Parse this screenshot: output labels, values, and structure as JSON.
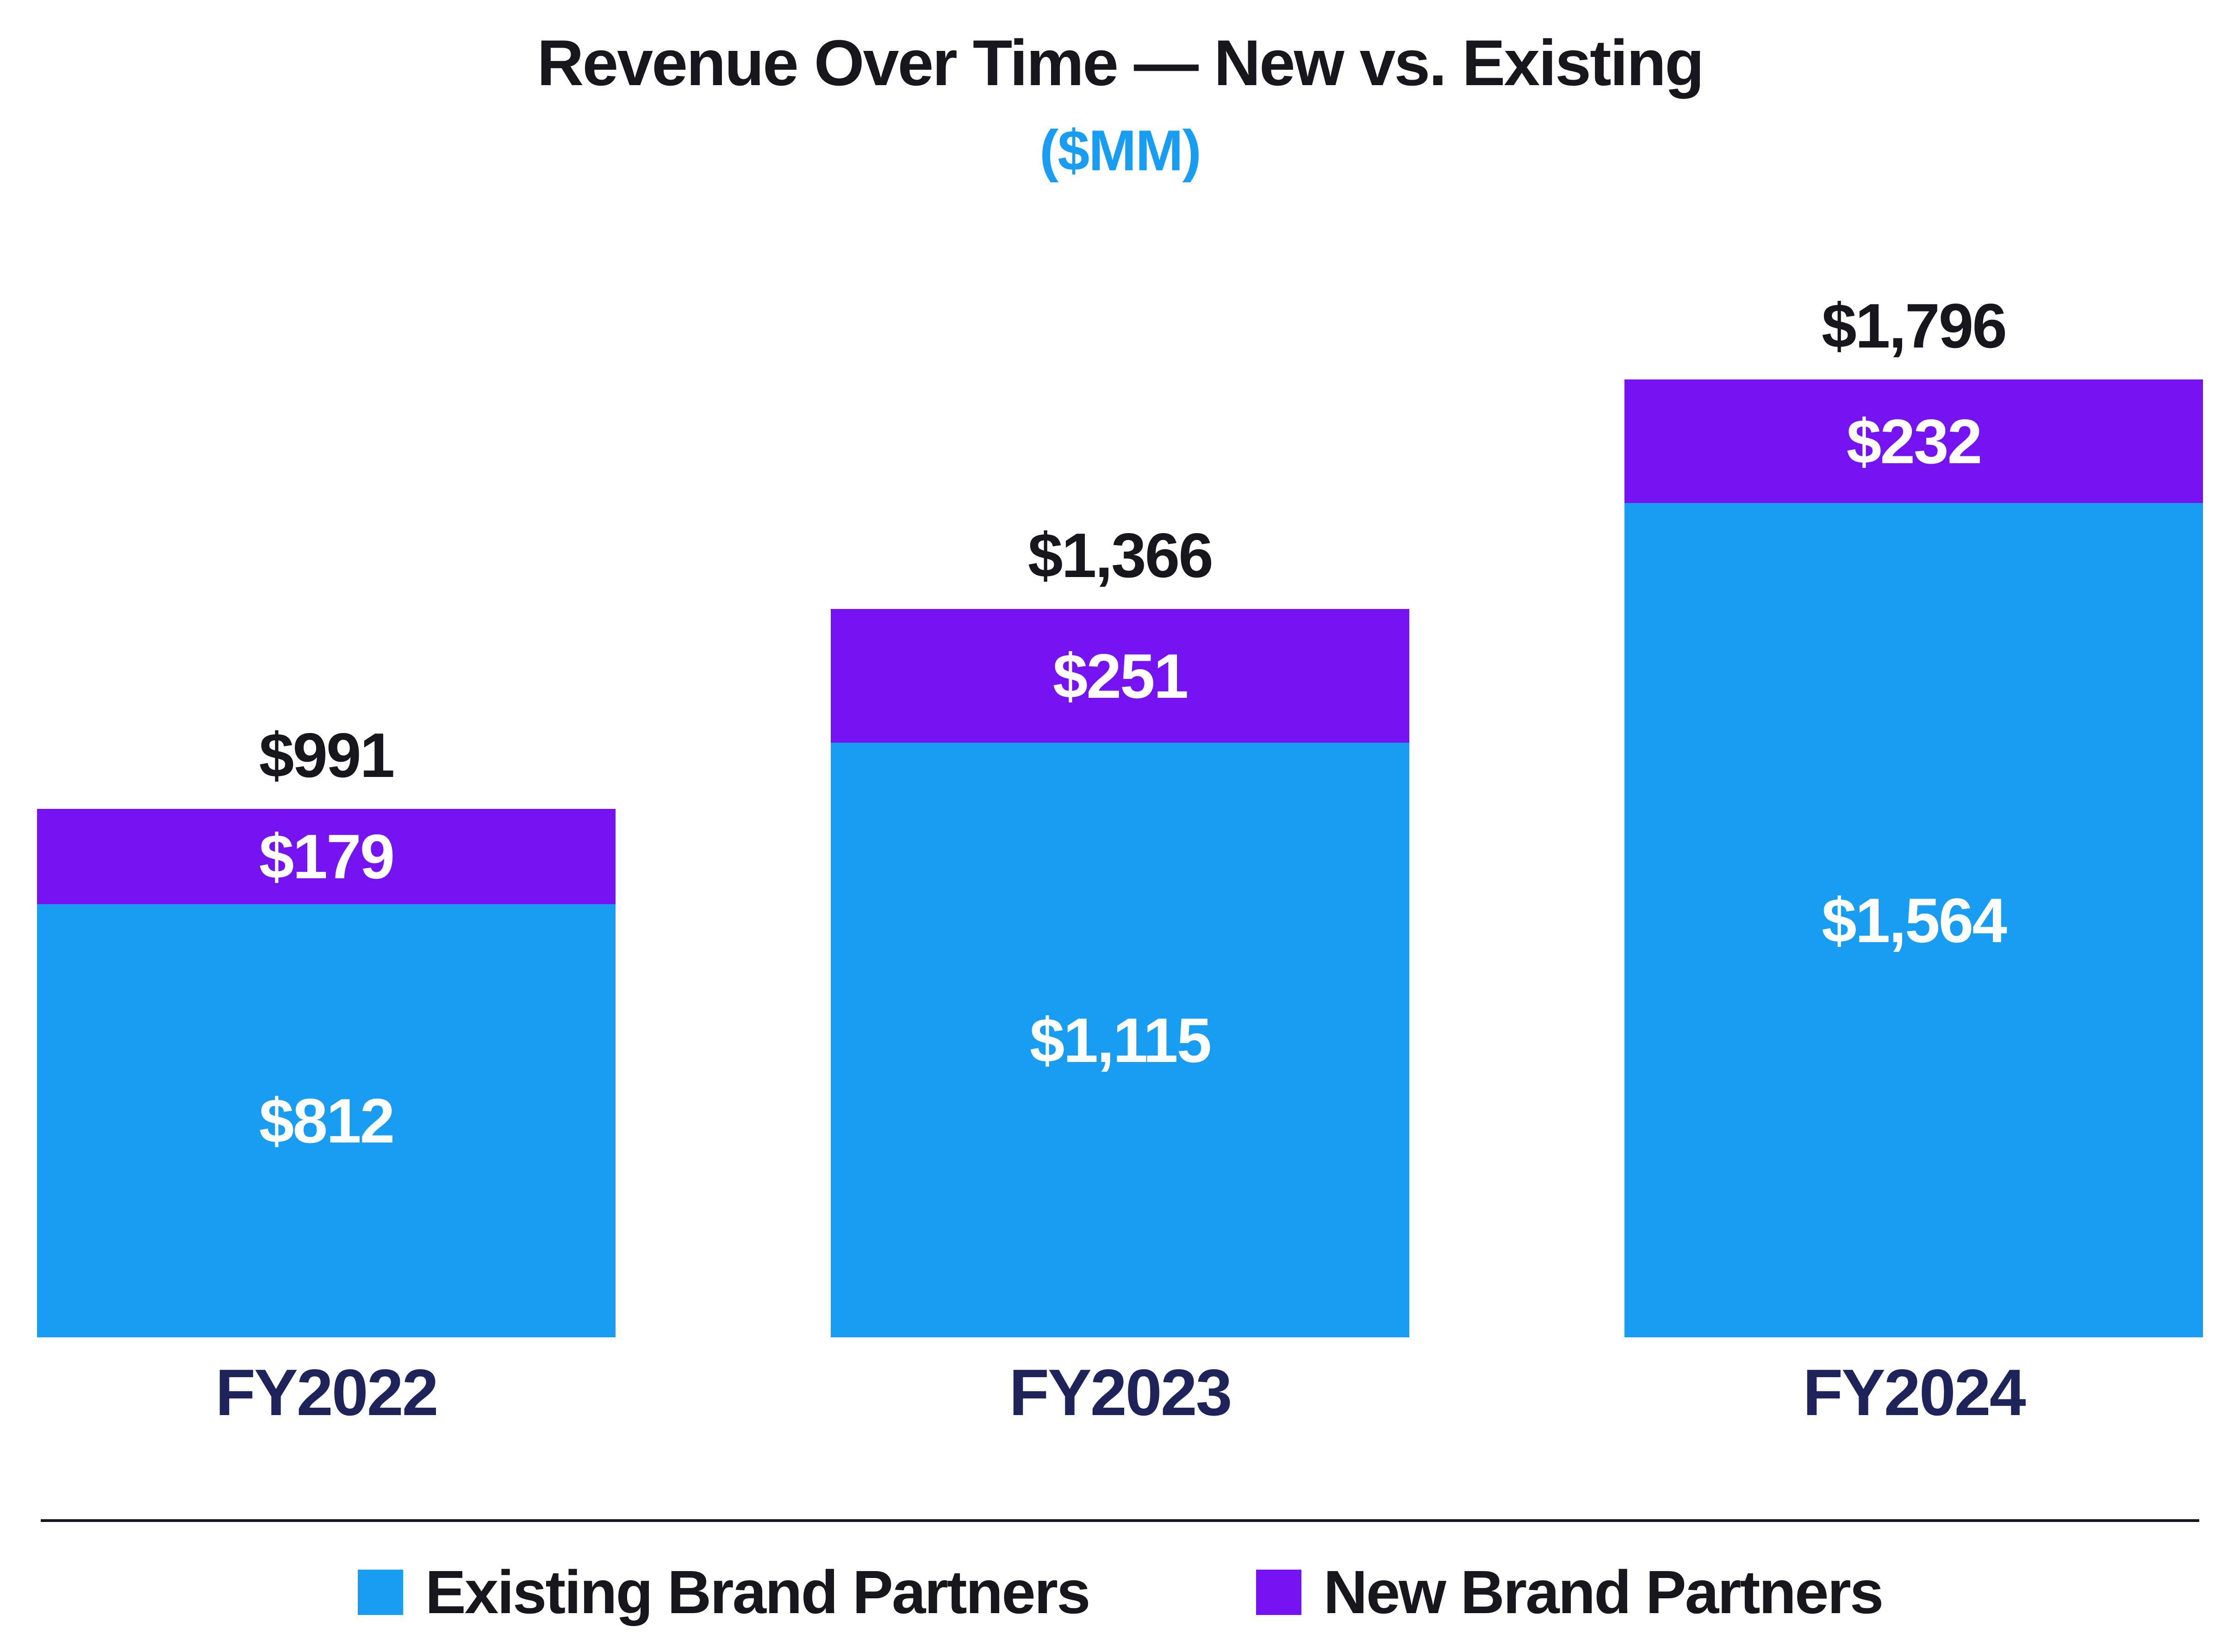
{
  "title": "Revenue Over Time — New vs. Existing",
  "subtitle": "($MM)",
  "colors": {
    "existing": "#189df2",
    "new": "#7613f2",
    "title": "#16161c",
    "axis": "#1e2359",
    "accent": "#189df2"
  },
  "legend": [
    {
      "label": "Existing Brand Partners",
      "color": "#189df2"
    },
    {
      "label": "New Brand Partners",
      "color": "#7613f2"
    }
  ],
  "chart_data": {
    "type": "bar",
    "stacked": true,
    "title": "Revenue Over Time — New vs. Existing",
    "subtitle": "($MM)",
    "units": "$MM",
    "categories": [
      "FY2022",
      "FY2023",
      "FY2024"
    ],
    "series": [
      {
        "name": "Existing Brand Partners",
        "values": [
          812,
          1115,
          1564
        ],
        "labels": [
          "$812",
          "$1,115",
          "$1,564"
        ],
        "color": "#189df2"
      },
      {
        "name": "New Brand Partners",
        "values": [
          179,
          251,
          232
        ],
        "labels": [
          "$179",
          "$251",
          "$232"
        ],
        "color": "#7613f2"
      }
    ],
    "totals": [
      991,
      1366,
      1796
    ],
    "total_labels": [
      "$991",
      "$1,366",
      "$1,796"
    ],
    "ylim": [
      0,
      1900
    ],
    "grid": false,
    "legend_position": "bottom"
  }
}
